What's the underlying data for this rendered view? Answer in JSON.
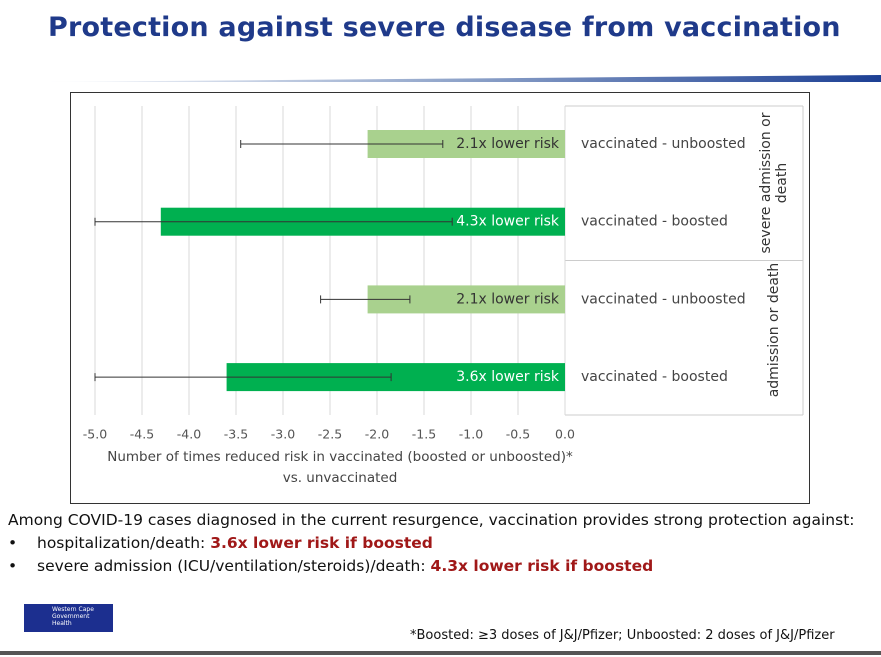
{
  "title": "Protection against severe disease from vaccination",
  "chart_data": {
    "type": "bar",
    "orientation": "horizontal",
    "categories": [
      "vaccinated - unboosted",
      "vaccinated - boosted",
      "vaccinated - unboosted",
      "vaccinated - boosted"
    ],
    "values": [
      -2.1,
      -4.3,
      -2.1,
      -3.6
    ],
    "value_labels": [
      "2.1x lower risk",
      "4.3x lower risk",
      "2.1x lower risk",
      "3.6x lower risk"
    ],
    "errors": [
      [
        -3.45,
        -1.3
      ],
      [
        -5.0,
        -1.2
      ],
      [
        -2.6,
        -1.65
      ],
      [
        -5.0,
        -1.85
      ]
    ],
    "colors": [
      "#a9d18e",
      "#00b050",
      "#a9d18e",
      "#00b050"
    ],
    "groups": [
      "severe admission or death",
      "admission or death"
    ],
    "xlabel": [
      "Number of times reduced risk in vaccinated (boosted or unboosted)*",
      "vs. unvaccinated"
    ],
    "xlim": [
      -5.0,
      0.0
    ],
    "xticks": [
      {
        "value": -5,
        "label": "-5.0"
      },
      -4.5,
      {
        "value": -4,
        "label": "-4.0"
      },
      -3.5,
      {
        "value": -3,
        "label": "-3.0"
      },
      -2.5,
      {
        "value": -2,
        "label": "-2.0"
      },
      -1.5,
      {
        "value": -1,
        "label": "-1.0"
      },
      -0.5,
      {
        "value": 0,
        "label": "0.0"
      }
    ],
    "grid": true
  },
  "summary": {
    "intro": "Among COVID-19 cases diagnosed in the current resurgence, vaccination provides strong protection against:",
    "bullets": [
      {
        "text": "hospitalization/death:",
        "highlight": "3.6x lower risk if boosted"
      },
      {
        "text": "severe admission (ICU/ventilation/steroids)/death:",
        "highlight": "4.3x lower risk if boosted"
      }
    ]
  },
  "footnote": "*Boosted: ≥3 doses of J&J/Pfizer; Unboosted: 2 doses of J&J/Pfizer",
  "logo": {
    "line1": "Western Cape",
    "line2": "Government",
    "line3": "Health"
  }
}
